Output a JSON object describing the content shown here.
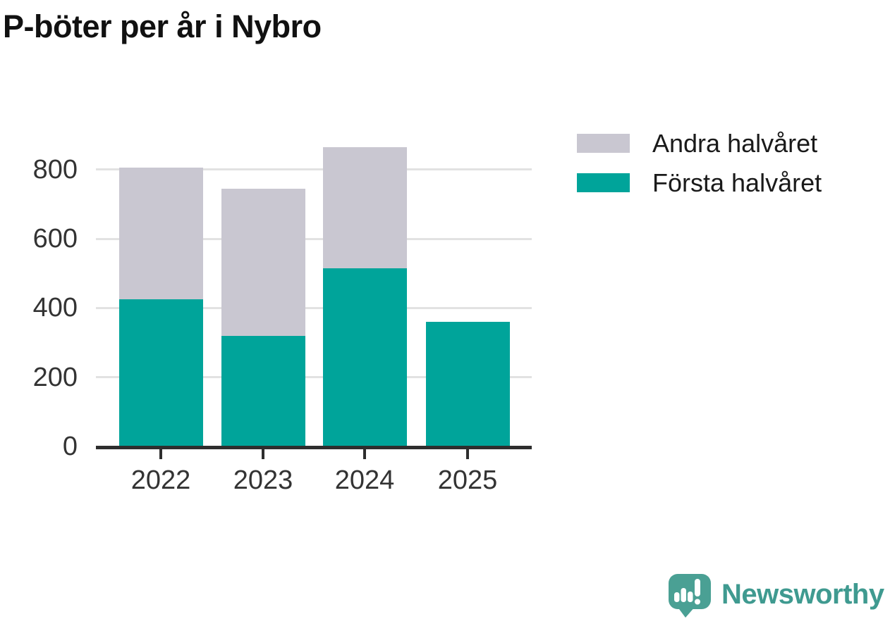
{
  "title": "P-böter per år i Nybro",
  "legend": [
    {
      "label": "Andra halvåret",
      "color": "#c9c7d1"
    },
    {
      "label": "Första halvåret",
      "color": "#00a49a"
    }
  ],
  "brand": {
    "name": "Newsworthy",
    "text_color": "#3f9a90",
    "icon_color": "#4aa094",
    "icon": "newsworthy-speech-bubble-barchart-icon"
  },
  "chart_data": {
    "type": "bar",
    "stacked": true,
    "title": "P-böter per år i Nybro",
    "categories": [
      "2022",
      "2023",
      "2024",
      "2025"
    ],
    "series": [
      {
        "name": "Första halvåret",
        "color": "#00a49a",
        "values": [
          425,
          320,
          515,
          360
        ]
      },
      {
        "name": "Andra halvåret",
        "color": "#c9c7d1",
        "values": [
          380,
          425,
          350,
          0
        ]
      }
    ],
    "totals": [
      805,
      745,
      865,
      360
    ],
    "xlabel": "",
    "ylabel": "",
    "ylim": [
      0,
      900
    ],
    "yticks": [
      0,
      200,
      400,
      600,
      800
    ],
    "grid": true,
    "gridline_color": "#e2e2e2",
    "axis_color": "#2e2e2e",
    "tick_text_color": "#333333",
    "legend_position": "top-right",
    "background": "#ffffff"
  }
}
